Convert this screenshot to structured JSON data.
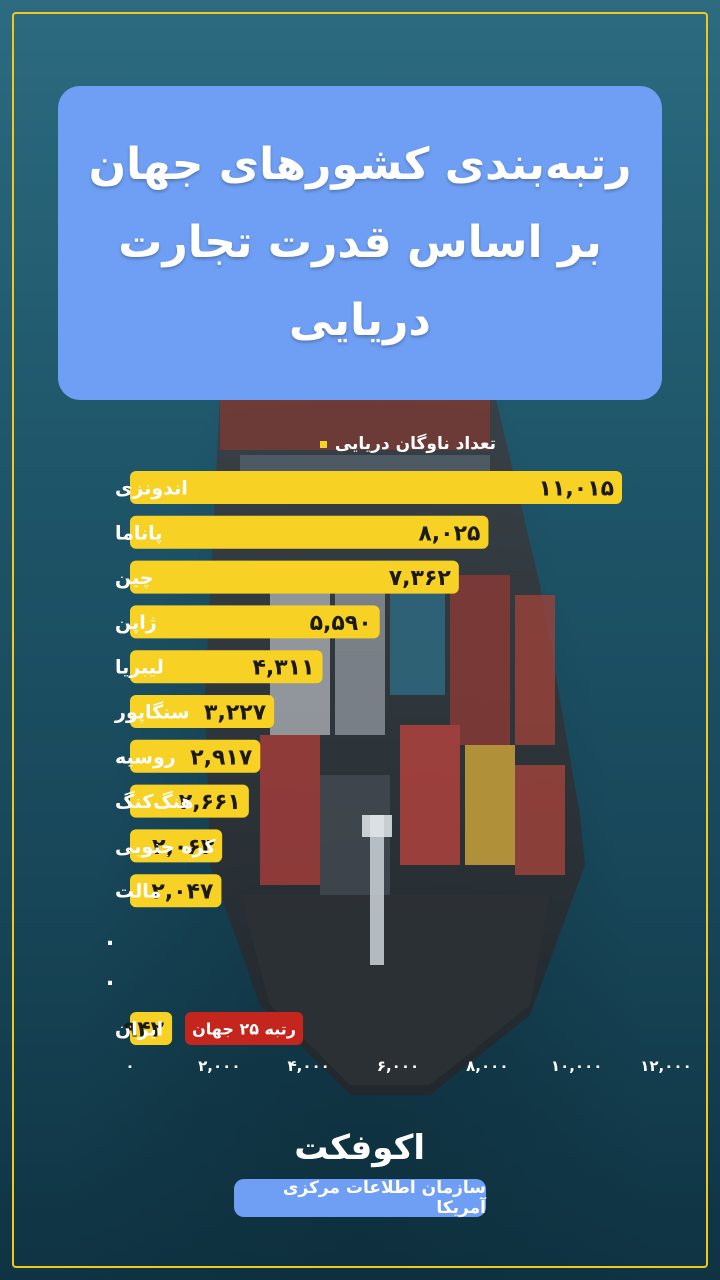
{
  "title": {
    "line1": "رتبه‌بندی کشورهای جهان",
    "line2": "بر اساس قدرت تجارت دریایی"
  },
  "chart_data": {
    "type": "bar",
    "orientation": "horizontal",
    "series_name": "تعداد ناوگان دریایی",
    "categories": [
      "اندونزی",
      "پاناما",
      "چین",
      "ژاپن",
      "لیبریا",
      "سنگاپور",
      "روسیه",
      "هنگ‌کنگ",
      "کره جنوبی",
      "مالت",
      "ایران"
    ],
    "values": [
      11015,
      8025,
      7362,
      5590,
      4311,
      3227,
      2917,
      2661,
      2063,
      2047,
      942
    ],
    "value_labels": [
      "۱۱,۰۱۵",
      "۸,۰۲۵",
      "۷,۳۶۲",
      "۵,۵۹۰",
      "۴,۳۱۱",
      "۳,۲۲۷",
      "۲,۹۱۷",
      "۲,۶۶۱",
      "۲,۰۶۳",
      "۲,۰۴۷",
      "۹۴۲"
    ],
    "gap_markers": [
      ".",
      "."
    ],
    "xlim": [
      0,
      12000
    ],
    "xticks": [
      0,
      2000,
      4000,
      6000,
      8000,
      10000,
      12000
    ],
    "xtick_labels": [
      "۰",
      "۲,۰۰۰",
      "۴,۰۰۰",
      "۶,۰۰۰",
      "۸,۰۰۰",
      "۱۰,۰۰۰",
      "۱۲,۰۰۰"
    ],
    "annotation": {
      "category": "ایران",
      "text": "رتبه ۲۵ جهان",
      "color": "#c4261d"
    },
    "bar_color": "#f7d124",
    "label_color": "#ffffff",
    "grid": false,
    "legend": "top"
  },
  "footer": {
    "logo_text": "اکوفکت",
    "source": "سازمان اطلاعات مرکزی آمریکا"
  },
  "colors": {
    "accent_blue": "#6f9ff4",
    "frame": "#f2c71f"
  }
}
